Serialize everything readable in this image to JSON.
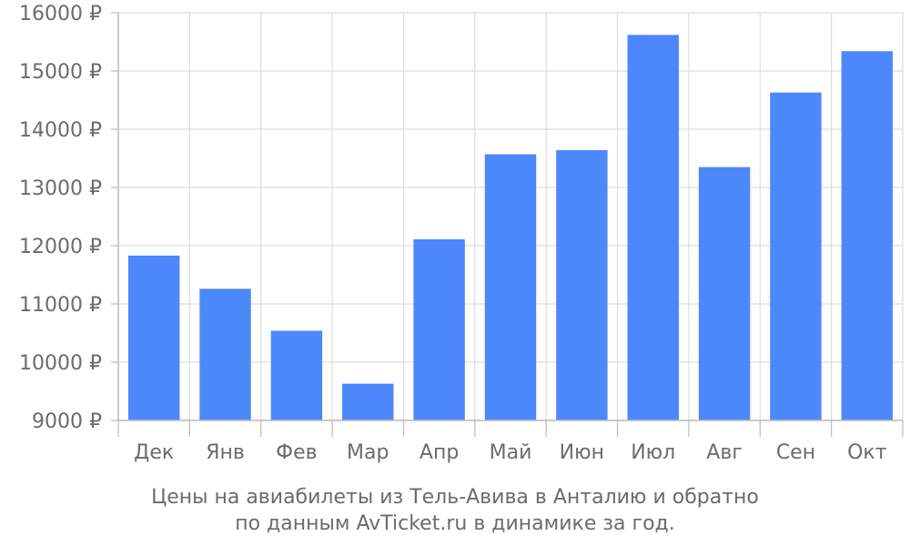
{
  "chart_data": {
    "type": "bar",
    "categories": [
      "Дек",
      "Янв",
      "Фев",
      "Мар",
      "Апр",
      "Май",
      "Июн",
      "Июл",
      "Авг",
      "Сен",
      "Окт"
    ],
    "values": [
      11830,
      11260,
      10540,
      9630,
      12110,
      13570,
      13640,
      15620,
      13350,
      14630,
      15340
    ],
    "y_ticks": [
      "9000 ₽",
      "10000 ₽",
      "11000 ₽",
      "12000 ₽",
      "13000 ₽",
      "14000 ₽",
      "15000 ₽",
      "16000 ₽"
    ],
    "ylim": [
      9000,
      16000
    ],
    "y_unit": "₽",
    "grid": true,
    "title": "",
    "xlabel": "",
    "ylabel": "",
    "bar_color": "#4d88fa",
    "grid_color": "#dddddd",
    "axis_color": "#bbbbbb",
    "text_color": "#6b6b6b"
  },
  "caption": {
    "line1": "Цены на авиабилеты из Тель-Авива в Анталию и обратно",
    "line2": "по данным AvTicket.ru в динамике за год."
  }
}
